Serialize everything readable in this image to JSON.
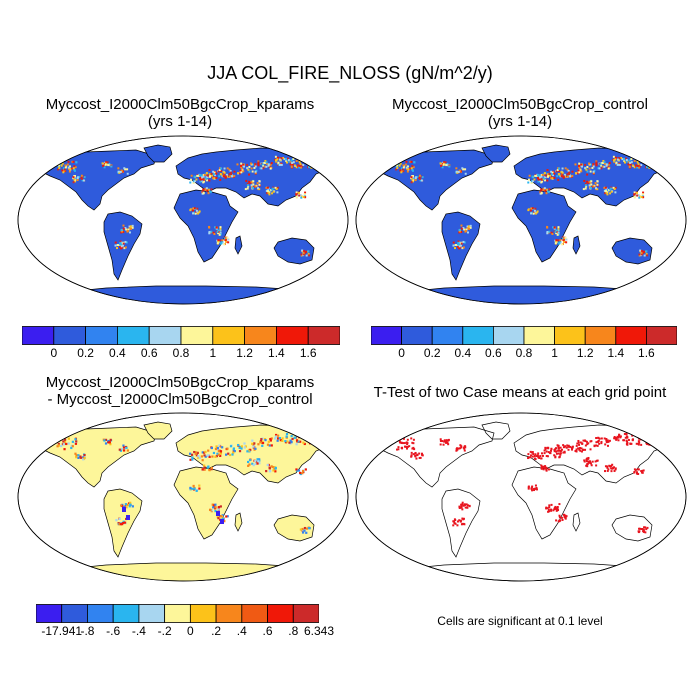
{
  "figure": {
    "title": "JJA COL_FIRE_NLOSS (gN/m^2/y)"
  },
  "panels": [
    {
      "id": "kparams",
      "title_line1": "Myccost_I2000Clm50BgcCrop_kparams",
      "title_line2": "(yrs 1-14)",
      "style": "blue-hot"
    },
    {
      "id": "control",
      "title_line1": "Myccost_I2000Clm50BgcCrop_control",
      "title_line2": "(yrs 1-14)",
      "style": "blue-hot"
    },
    {
      "id": "difference",
      "title_line1": "Myccost_I2000Clm50BgcCrop_kparams",
      "title_line2": "- Myccost_I2000Clm50BgcCrop_control",
      "style": "yellow-diff"
    },
    {
      "id": "ttest",
      "title_line1": "T-Test of two Case means at each grid point",
      "title_line2": "",
      "style": "significance"
    }
  ],
  "colorbars": {
    "abs": {
      "colors": [
        "#3b1ef0",
        "#2f5bdc",
        "#3183f0",
        "#2ab5ef",
        "#a8d6f0",
        "#fdf69a",
        "#fcc21a",
        "#f7861c",
        "#f01808",
        "#cc2a2a"
      ],
      "labels": [
        "0",
        "0.2",
        "0.4",
        "0.6",
        "0.8",
        "1",
        "1.2",
        "1.4",
        "1.6"
      ]
    },
    "diff": {
      "colors": [
        "#3b1ef0",
        "#2f5bdc",
        "#3183f0",
        "#2ab5ef",
        "#a8d6f0",
        "#fdf69a",
        "#fcc21a",
        "#f7861c",
        "#f05a14",
        "#f01808",
        "#cc2a2a"
      ],
      "labels": [
        "-17.941",
        "-.8",
        "-.6",
        "-.4",
        "-.2",
        "0",
        ".2",
        ".4",
        ".6",
        ".8",
        "6.343"
      ]
    }
  },
  "significance_note": "Cells are significant at 0.1 level"
}
